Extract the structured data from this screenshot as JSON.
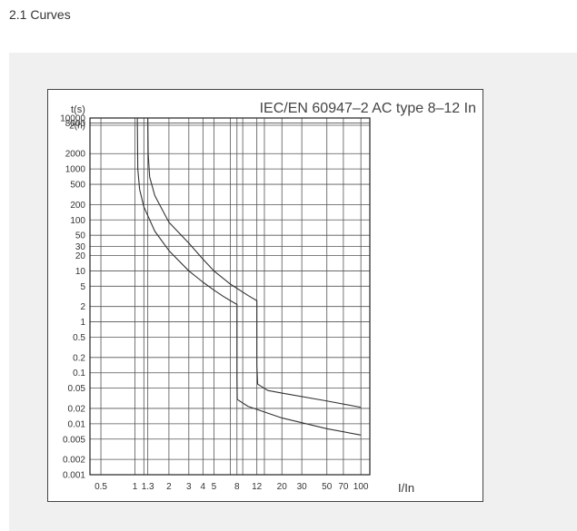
{
  "section_title": "2.1 Curves",
  "chart_data": {
    "type": "line",
    "title": "IEC/EN 60947–2 AC type 8–12 In",
    "xlabel": "I/In",
    "ylabel": "t(s)",
    "x_scale": "log",
    "y_scale": "log",
    "xlim": [
      0.4,
      120
    ],
    "ylim": [
      0.001,
      10000
    ],
    "grid": true,
    "x_ticks": [
      {
        "value": 0.5,
        "label": "0.5"
      },
      {
        "value": 1,
        "label": "1"
      },
      {
        "value": 1.3,
        "label": "1.3"
      },
      {
        "value": 2,
        "label": "2"
      },
      {
        "value": 3,
        "label": "3"
      },
      {
        "value": 4,
        "label": "4"
      },
      {
        "value": 5,
        "label": "5"
      },
      {
        "value": 8,
        "label": "8"
      },
      {
        "value": 12,
        "label": "12"
      },
      {
        "value": 20,
        "label": "20"
      },
      {
        "value": 30,
        "label": "30"
      },
      {
        "value": 50,
        "label": "50"
      },
      {
        "value": 70,
        "label": "70"
      },
      {
        "value": 100,
        "label": "100"
      }
    ],
    "y_ticks": [
      {
        "value": 10000,
        "label": "10000"
      },
      {
        "value": 8000,
        "label": "8000"
      },
      {
        "value": 7200,
        "label": "2(h)"
      },
      {
        "value": 2000,
        "label": "2000"
      },
      {
        "value": 1000,
        "label": "1000"
      },
      {
        "value": 500,
        "label": "500"
      },
      {
        "value": 200,
        "label": "200"
      },
      {
        "value": 100,
        "label": "100"
      },
      {
        "value": 50,
        "label": "50"
      },
      {
        "value": 30,
        "label": "30"
      },
      {
        "value": 20,
        "label": "20"
      },
      {
        "value": 10,
        "label": "10"
      },
      {
        "value": 5,
        "label": "5"
      },
      {
        "value": 2,
        "label": "2"
      },
      {
        "value": 1,
        "label": "1"
      },
      {
        "value": 0.5,
        "label": "0.5"
      },
      {
        "value": 0.2,
        "label": "0.2"
      },
      {
        "value": 0.1,
        "label": "0.1"
      },
      {
        "value": 0.05,
        "label": "0.05"
      },
      {
        "value": 0.02,
        "label": "0.02"
      },
      {
        "value": 0.01,
        "label": "0.01"
      },
      {
        "value": 0.005,
        "label": "0.005"
      },
      {
        "value": 0.002,
        "label": "0.002"
      },
      {
        "value": 0.001,
        "label": "0.001"
      }
    ],
    "extra_vertical_gridlines": [
      1.2,
      7,
      9,
      14
    ],
    "series": [
      {
        "x": [
          1.05,
          1.06,
          1.1,
          1.2,
          1.5,
          2,
          3,
          4,
          5,
          6,
          7,
          8,
          8,
          8.05,
          10,
          20,
          50,
          100
        ],
        "y": [
          10000,
          1000,
          400,
          180,
          60,
          25,
          10,
          6,
          4.2,
          3.2,
          2.6,
          2.2,
          0.08,
          0.03,
          0.022,
          0.013,
          0.008,
          0.006
        ]
      },
      {
        "x": [
          1.3,
          1.31,
          1.35,
          1.5,
          2,
          3,
          4,
          5,
          7,
          10,
          12,
          12,
          12.2,
          15,
          20,
          50,
          100
        ],
        "y": [
          10000,
          2000,
          700,
          300,
          90,
          35,
          17,
          10,
          5.5,
          3.3,
          2.6,
          0.14,
          0.06,
          0.045,
          0.04,
          0.028,
          0.021
        ]
      }
    ]
  }
}
